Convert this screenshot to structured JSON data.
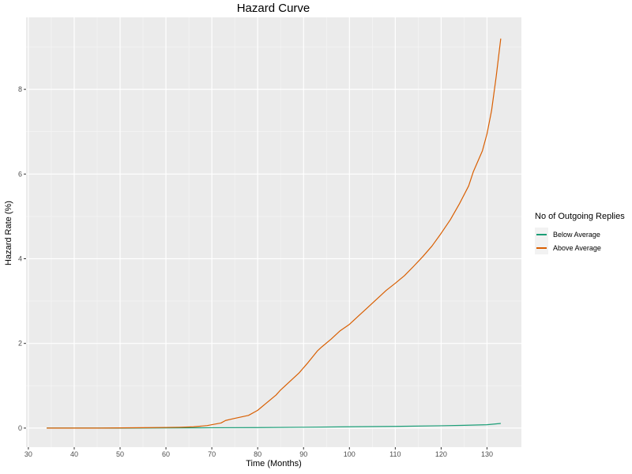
{
  "chart_data": {
    "type": "line",
    "title": "Hazard Curve",
    "xlabel": "Time (Months)",
    "ylabel": "Hazard Rate (%)",
    "xlim": [
      29.5,
      137.5
    ],
    "ylim": [
      -0.45,
      9.7
    ],
    "xticks": [
      30,
      40,
      50,
      60,
      70,
      80,
      90,
      100,
      110,
      120,
      130
    ],
    "yticks": [
      0,
      2,
      4,
      6,
      8
    ],
    "grid": true,
    "legend": {
      "title": "No of Outgoing Replies",
      "position": "right"
    },
    "series": [
      {
        "name": "Below Average",
        "color": "#1b9e77",
        "x": [
          34,
          40,
          50,
          60,
          70,
          80,
          90,
          100,
          110,
          120,
          125,
          130,
          133
        ],
        "y": [
          0,
          0,
          0,
          0.005,
          0.008,
          0.012,
          0.02,
          0.03,
          0.04,
          0.055,
          0.065,
          0.08,
          0.11
        ]
      },
      {
        "name": "Above Average",
        "color": "#d95f02",
        "x": [
          34,
          40,
          45,
          50,
          55,
          60,
          63,
          66,
          69,
          72,
          73,
          75,
          78,
          80,
          82,
          84,
          85,
          87,
          89,
          91,
          93,
          94,
          96,
          98,
          100,
          102,
          104,
          106,
          108,
          110,
          112,
          114,
          116,
          118,
          120,
          122,
          124,
          126,
          127,
          129,
          130,
          131,
          132,
          133
        ],
        "y": [
          0,
          0,
          0,
          0.005,
          0.01,
          0.015,
          0.02,
          0.03,
          0.06,
          0.12,
          0.18,
          0.23,
          0.3,
          0.42,
          0.6,
          0.78,
          0.9,
          1.1,
          1.3,
          1.55,
          1.82,
          1.92,
          2.1,
          2.3,
          2.45,
          2.65,
          2.85,
          3.05,
          3.25,
          3.42,
          3.6,
          3.82,
          4.05,
          4.3,
          4.6,
          4.92,
          5.3,
          5.72,
          6.05,
          6.55,
          6.95,
          7.5,
          8.3,
          9.2
        ]
      }
    ]
  }
}
